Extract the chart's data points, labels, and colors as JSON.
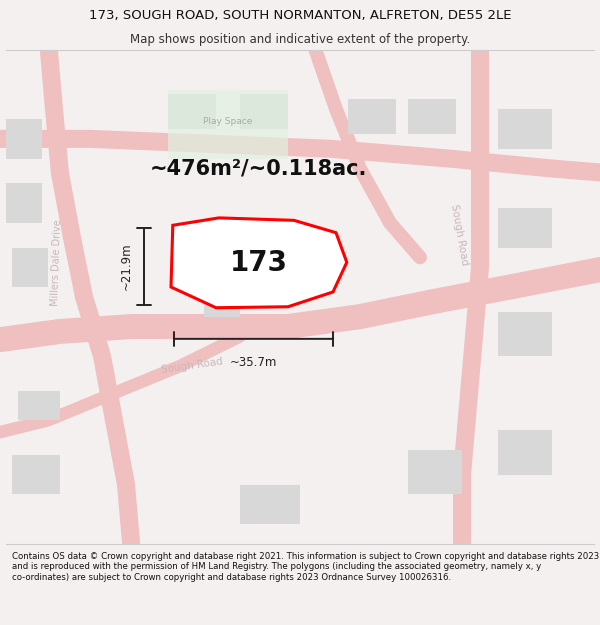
{
  "title_line1": "173, SOUGH ROAD, SOUTH NORMANTON, ALFRETON, DE55 2LE",
  "title_line2": "Map shows position and indicative extent of the property.",
  "area_text": "~476m²/~0.118ac.",
  "plot_label": "173",
  "dim_height": "~21.9m",
  "dim_width": "~35.7m",
  "footer_text": "Contains OS data © Crown copyright and database right 2021. This information is subject to Crown copyright and database rights 2023 and is reproduced with the permission of HM Land Registry. The polygons (including the associated geometry, namely x, y co-ordinates) are subject to Crown copyright and database rights 2023 Ordnance Survey 100026316.",
  "bg_color": "#f5f0f0",
  "map_bg": "#ffffff",
  "road_color": "#f0c0c0",
  "building_color": "#d8d8d8",
  "play_color": "#e0f0e0",
  "plot_color": "#ff0000",
  "plot_fill": "#ffffff",
  "dim_color": "#222222",
  "road_label_color": "#c8b8b8",
  "title_fontsize": 9.5,
  "subtitle_fontsize": 8.5,
  "area_fontsize": 15,
  "plot_label_fontsize": 20,
  "dim_fontsize": 8.5,
  "footer_fontsize": 6.2,
  "road_linewidth": 18,
  "road_linewidth_small": 13
}
